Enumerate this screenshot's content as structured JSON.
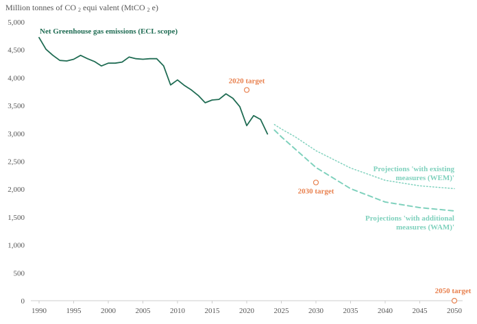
{
  "chart_data": {
    "type": "line",
    "ylabel": {
      "part1": "Million tonnes of CO",
      "sub1": "2",
      "part2": "equi valent (MtCO",
      "sub2": "2",
      "part3": "e)"
    },
    "ylim": [
      0,
      5000
    ],
    "yticks": [
      0,
      500,
      1000,
      1500,
      2000,
      2500,
      3000,
      3500,
      4000,
      4500,
      5000
    ],
    "ytick_labels": [
      "0",
      "500",
      "1,000",
      "1,500",
      "2,000",
      "2,500",
      "3,000",
      "3,500",
      "4,000",
      "4,500",
      "5,000"
    ],
    "xlim": [
      1990,
      2050
    ],
    "xticks": [
      1990,
      1995,
      2000,
      2005,
      2010,
      2015,
      2020,
      2025,
      2030,
      2035,
      2040,
      2045,
      2050
    ],
    "colors": {
      "historic": "#1e6b52",
      "projection": "#7fd1bd",
      "target": "#e8804e",
      "axis": "#cccccc",
      "tick_text": "#555555"
    },
    "series": [
      {
        "name": "Net Greenhouse gas emissions (ECL scope)",
        "style": "solid",
        "x": [
          1990,
          1991,
          1992,
          1993,
          1994,
          1995,
          1996,
          1997,
          1998,
          1999,
          2000,
          2001,
          2002,
          2003,
          2004,
          2005,
          2006,
          2007,
          2008,
          2009,
          2010,
          2011,
          2012,
          2013,
          2014,
          2015,
          2016,
          2017,
          2018,
          2019,
          2020,
          2021,
          2022,
          2023
        ],
        "values": [
          4720,
          4510,
          4400,
          4310,
          4300,
          4330,
          4400,
          4340,
          4290,
          4210,
          4260,
          4260,
          4280,
          4370,
          4340,
          4330,
          4340,
          4340,
          4210,
          3870,
          3960,
          3860,
          3780,
          3680,
          3550,
          3600,
          3610,
          3710,
          3630,
          3480,
          3140,
          3320,
          3250,
          2990
        ]
      },
      {
        "name": "Projections 'with existing measures (WEM)'",
        "label_line1": "Projections  'with existing",
        "label_line2": "measures  (WEM)'",
        "style": "dotted",
        "x": [
          2024,
          2025,
          2027,
          2030,
          2035,
          2040,
          2045,
          2050
        ],
        "values": [
          3160,
          3080,
          2940,
          2690,
          2380,
          2160,
          2060,
          2010
        ]
      },
      {
        "name": "Projections 'with additional measures (WAM)'",
        "label_line1": "Projections  'with additional",
        "label_line2": "measures  (WAM)'",
        "style": "dashed",
        "x": [
          2024,
          2025,
          2027,
          2030,
          2035,
          2040,
          2045,
          2050
        ],
        "values": [
          3060,
          2940,
          2720,
          2390,
          2010,
          1770,
          1670,
          1610
        ]
      }
    ],
    "targets": [
      {
        "label": "2020 target",
        "x": 2020,
        "value": 3780
      },
      {
        "label": "2030 target",
        "x": 2030,
        "value": 2120
      },
      {
        "label": "2050 target",
        "x": 2050,
        "value": 0
      }
    ]
  }
}
